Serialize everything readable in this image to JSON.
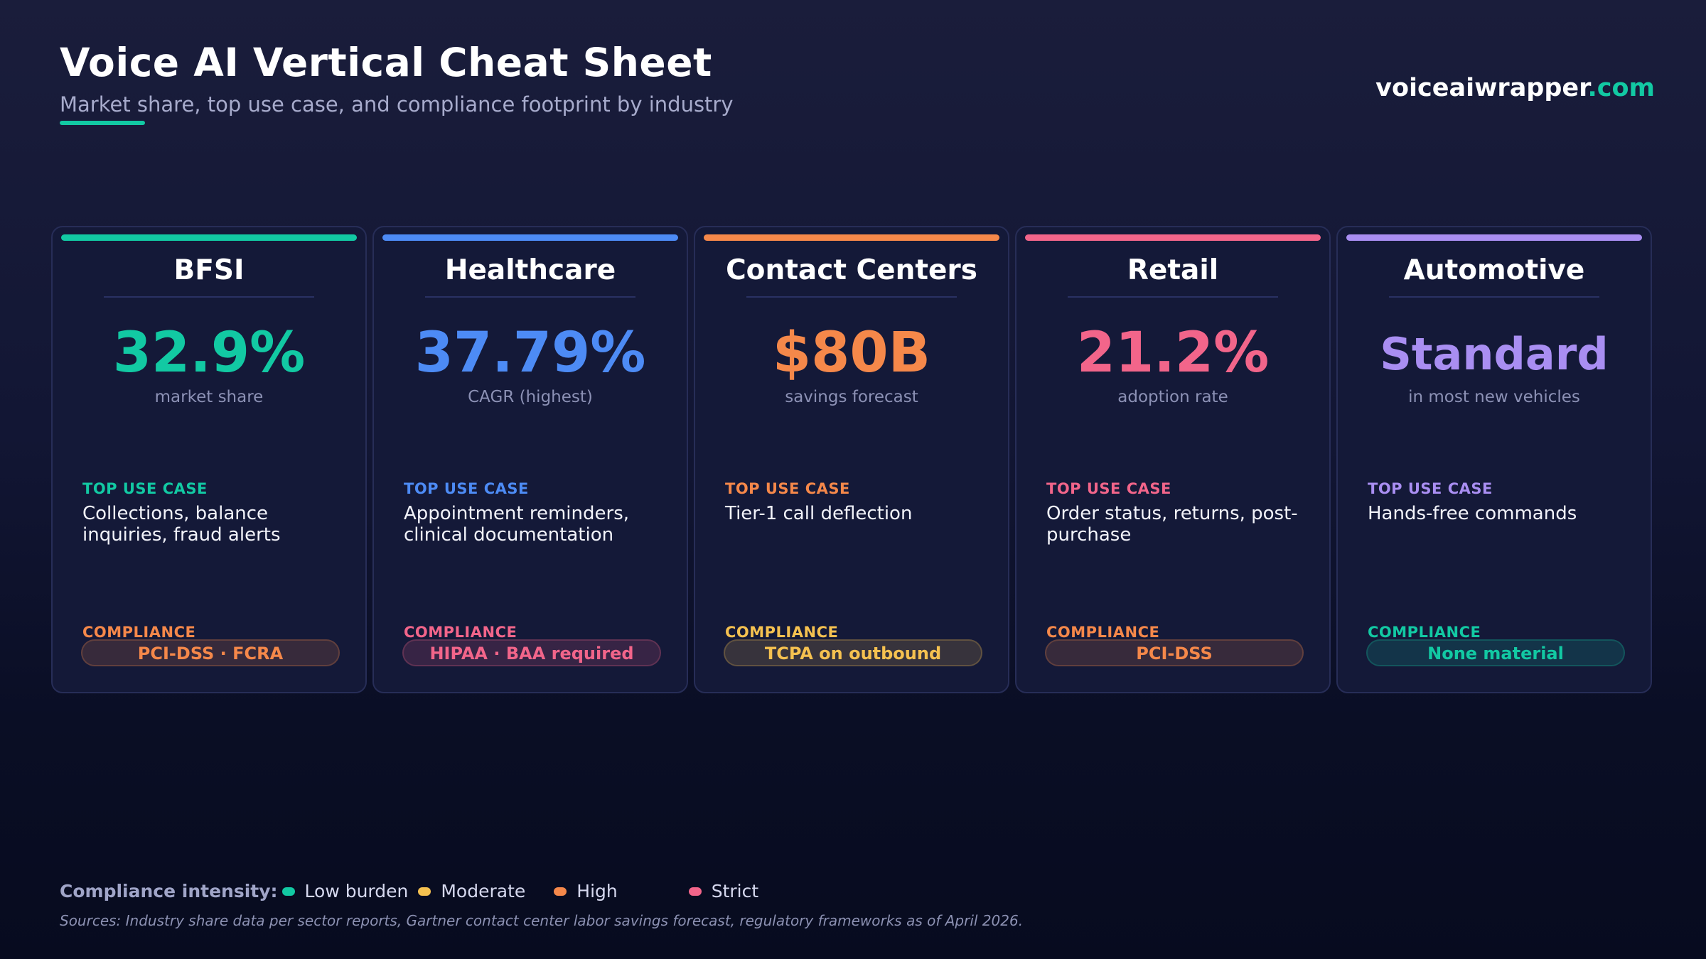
{
  "header": {
    "title": "Voice AI Vertical Cheat Sheet",
    "subtitle": "Market share, top use case, and compliance footprint by industry",
    "brand_main": "voiceaiwrapper",
    "brand_accent": ".com"
  },
  "colors": {
    "teal": "#12c9a3",
    "blue": "#4d8bf5",
    "orange": "#f5884a",
    "pink": "#f2658a",
    "purple": "#a98ef2",
    "yellow": "#f5c150"
  },
  "cards": [
    {
      "name": "BFSI",
      "metric": "32.9%",
      "metric_label": "market share",
      "use_case_label": "TOP USE CASE",
      "use_case": "Collections, balance inquiries, fraud alerts",
      "compliance_label": "COMPLIANCE",
      "compliance": "PCI-DSS · FCRA",
      "accent": "#12c9a3",
      "compliance_color": "#f5884a"
    },
    {
      "name": "Healthcare",
      "metric": "37.79%",
      "metric_label": "CAGR (highest)",
      "use_case_label": "TOP USE CASE",
      "use_case": "Appointment reminders, clinical documentation",
      "compliance_label": "COMPLIANCE",
      "compliance": "HIPAA · BAA required",
      "accent": "#4d8bf5",
      "compliance_color": "#f2658a"
    },
    {
      "name": "Contact Centers",
      "metric": "$80B",
      "metric_label": "savings forecast",
      "use_case_label": "TOP USE CASE",
      "use_case": "Tier-1 call deflection",
      "compliance_label": "COMPLIANCE",
      "compliance": "TCPA on outbound",
      "accent": "#f5884a",
      "compliance_color": "#f5c150"
    },
    {
      "name": "Retail",
      "metric": "21.2%",
      "metric_label": "adoption rate",
      "use_case_label": "TOP USE CASE",
      "use_case": "Order status, returns, post-purchase",
      "compliance_label": "COMPLIANCE",
      "compliance": "PCI-DSS",
      "accent": "#f2658a",
      "compliance_color": "#f5884a"
    },
    {
      "name": "Automotive",
      "metric": "Standard",
      "metric_label": "in most new vehicles",
      "use_case_label": "TOP USE CASE",
      "use_case": "Hands-free commands",
      "compliance_label": "COMPLIANCE",
      "compliance": "None material",
      "accent": "#a98ef2",
      "compliance_color": "#12c9a3"
    }
  ],
  "legend": {
    "title": "Compliance intensity:",
    "items": [
      {
        "label": "Low burden",
        "color": "#12c9a3"
      },
      {
        "label": "Moderate",
        "color": "#f5c150"
      },
      {
        "label": "High",
        "color": "#f5884a"
      },
      {
        "label": "Strict",
        "color": "#f2658a"
      }
    ]
  },
  "sources": "Sources: Industry share data per sector reports, Gartner contact center labor savings forecast, regulatory frameworks as of April 2026."
}
